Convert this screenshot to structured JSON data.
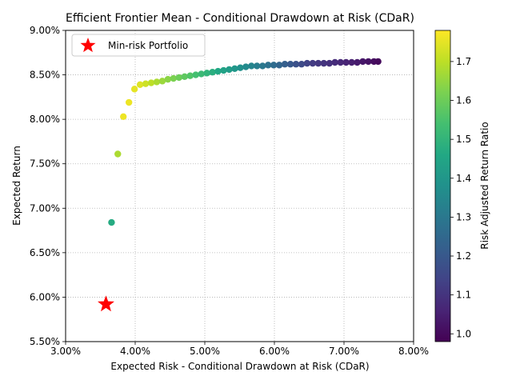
{
  "chart_data": {
    "type": "scatter",
    "title": "Efficient Frontier Mean - Conditional Drawdown at Risk (CDaR)",
    "xlabel": "Expected Risk - Conditional Drawdown at Risk (CDaR)",
    "ylabel": "Expected Return",
    "colorbar_label": "Risk Adjusted Return Ratio",
    "xlim": [
      0.03,
      0.08
    ],
    "ylim": [
      0.055,
      0.09
    ],
    "xticks": [
      0.03,
      0.04,
      0.05,
      0.06,
      0.07,
      0.08
    ],
    "xtick_labels": [
      "3.00%",
      "4.00%",
      "5.00%",
      "6.00%",
      "7.00%",
      "8.00%"
    ],
    "yticks": [
      0.055,
      0.06,
      0.065,
      0.07,
      0.075,
      0.08,
      0.085,
      0.09
    ],
    "ytick_labels": [
      "5.50%",
      "6.00%",
      "6.50%",
      "7.00%",
      "7.50%",
      "8.00%",
      "8.50%",
      "9.00%"
    ],
    "colorbar_range": [
      0.98,
      1.78
    ],
    "colorbar_ticks": [
      1.0,
      1.1,
      1.2,
      1.3,
      1.4,
      1.5,
      1.6,
      1.7
    ],
    "colorbar_tick_labels": [
      "1.0",
      "1.1",
      "1.2",
      "1.3",
      "1.4",
      "1.5",
      "1.6",
      "1.7"
    ],
    "colormap": "viridis",
    "grid": true,
    "legend_position": "upper-left",
    "series": [
      {
        "name": "frontier",
        "risk": [
          0.0366,
          0.0375,
          0.0383,
          0.0391,
          0.0399,
          0.0407,
          0.0415,
          0.0423,
          0.0431,
          0.0439,
          0.0447,
          0.0455,
          0.0463,
          0.0471,
          0.0479,
          0.0487,
          0.0495,
          0.0503,
          0.0511,
          0.0519,
          0.0527,
          0.0535,
          0.0543,
          0.0551,
          0.0559,
          0.0567,
          0.0575,
          0.0583,
          0.0591,
          0.0599,
          0.0607,
          0.0615,
          0.0623,
          0.0631,
          0.0639,
          0.0647,
          0.0655,
          0.0663,
          0.0671,
          0.0679,
          0.0687,
          0.0695,
          0.0703,
          0.0711,
          0.0719,
          0.0727,
          0.0735,
          0.0743,
          0.0749
        ],
        "return": [
          0.0684,
          0.0761,
          0.0803,
          0.0819,
          0.0834,
          0.0839,
          0.084,
          0.0841,
          0.0842,
          0.0843,
          0.0845,
          0.0846,
          0.0847,
          0.0848,
          0.0849,
          0.085,
          0.0851,
          0.0852,
          0.0853,
          0.0854,
          0.0855,
          0.0856,
          0.0857,
          0.0858,
          0.0859,
          0.086,
          0.086,
          0.086,
          0.0861,
          0.0861,
          0.0861,
          0.0862,
          0.0862,
          0.0862,
          0.0862,
          0.0863,
          0.0863,
          0.0863,
          0.0863,
          0.0863,
          0.0864,
          0.0864,
          0.0864,
          0.0864,
          0.0864,
          0.0865,
          0.0865,
          0.0865,
          0.0865
        ],
        "ratio": [
          1.47,
          1.68,
          1.76,
          1.76,
          1.75,
          1.74,
          1.72,
          1.7,
          1.68,
          1.66,
          1.64,
          1.62,
          1.6,
          1.58,
          1.56,
          1.54,
          1.52,
          1.5,
          1.48,
          1.46,
          1.44,
          1.42,
          1.4,
          1.38,
          1.36,
          1.34,
          1.32,
          1.3,
          1.28,
          1.26,
          1.24,
          1.22,
          1.2,
          1.18,
          1.16,
          1.14,
          1.12,
          1.11,
          1.1,
          1.09,
          1.08,
          1.07,
          1.06,
          1.05,
          1.04,
          1.03,
          1.02,
          1.01,
          1.0
        ]
      },
      {
        "name": "Min-risk Portfolio",
        "marker": "star",
        "color": "#ff0000",
        "risk": [
          0.0358
        ],
        "return": [
          0.0592
        ]
      }
    ]
  }
}
